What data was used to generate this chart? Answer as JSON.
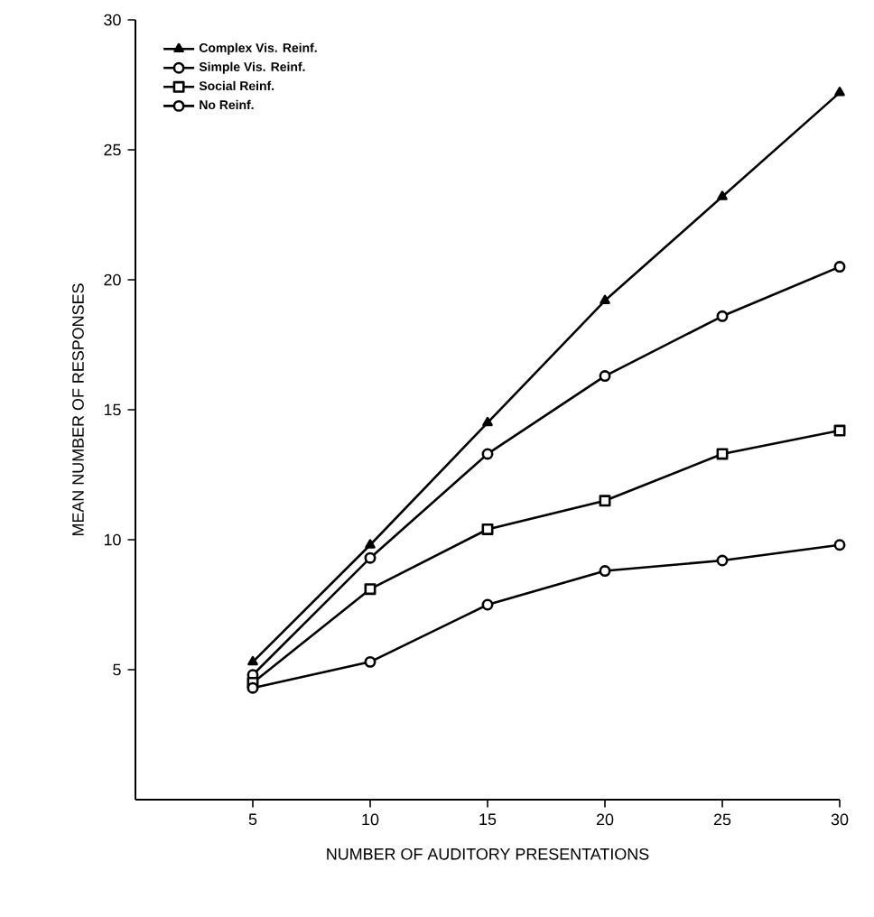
{
  "chart_data": {
    "type": "line",
    "xlabel": "NUMBER OF AUDITORY PRESENTATIONS",
    "ylabel": "MEAN NUMBER OF RESPONSES",
    "x": [
      5,
      10,
      15,
      20,
      25,
      30
    ],
    "xlim": [
      0,
      30
    ],
    "ylim": [
      0,
      30
    ],
    "xticks": [
      5,
      10,
      15,
      20,
      25,
      30
    ],
    "yticks": [
      5,
      10,
      15,
      20,
      25,
      30
    ],
    "legend": "top left",
    "grid": false,
    "line_style": "solid",
    "series": [
      {
        "name": "Complex Vis. Reinf.",
        "color": "#000000",
        "marker": "triangle",
        "values": [
          5.3,
          9.8,
          14.5,
          19.2,
          23.2,
          27.2
        ]
      },
      {
        "name": "Simple Vis. Reinf.",
        "color": "#000000",
        "marker": "circle",
        "values": [
          4.8,
          9.3,
          13.3,
          16.3,
          18.6,
          20.5
        ]
      },
      {
        "name": "Social Reinf.",
        "color": "#000000",
        "marker": "square",
        "values": [
          4.5,
          8.1,
          10.4,
          11.5,
          13.3,
          14.2
        ]
      },
      {
        "name": "No Reinf.",
        "color": "#000000",
        "marker": "circle",
        "values": [
          4.3,
          5.3,
          7.5,
          8.8,
          9.2,
          9.8
        ]
      }
    ]
  }
}
